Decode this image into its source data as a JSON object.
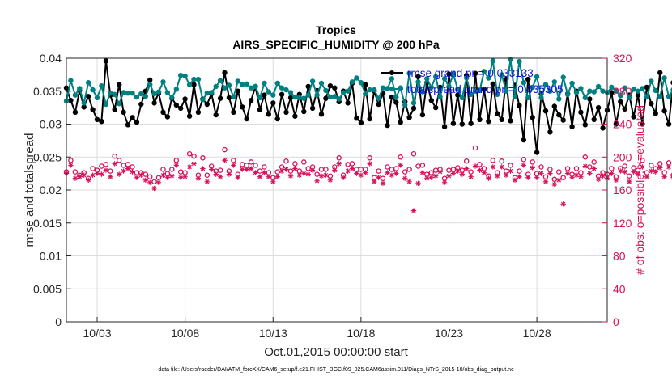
{
  "chart_data": {
    "type": "line",
    "title": "Tropics",
    "subtitle": "AIRS_SPECIFIC_HUMIDITY @ 200 hPa",
    "xlabel": "Oct.01,2015 00:00:00 start",
    "ylabel": "rmse and totalspread",
    "y2label": "# of obs: o=possible; ×=evaluated",
    "xlim": [
      1.25,
      32.0
    ],
    "ylim": [
      0,
      0.04
    ],
    "y2lim": [
      0,
      320
    ],
    "x_ticks": [
      {
        "value": 3,
        "label": "10/03"
      },
      {
        "value": 8,
        "label": "10/08"
      },
      {
        "value": 13,
        "label": "10/13"
      },
      {
        "value": 18,
        "label": "10/18"
      },
      {
        "value": 23,
        "label": "10/23"
      },
      {
        "value": 28,
        "label": "10/28"
      }
    ],
    "y_ticks": [
      "0",
      "0.005",
      "0.01",
      "0.015",
      "0.02",
      "0.025",
      "0.03",
      "0.035",
      "0.04"
    ],
    "y2_ticks": [
      "0",
      "40",
      "80",
      "120",
      "160",
      "200",
      "240",
      "280",
      "320"
    ],
    "grid": true,
    "legend_position": "top-right",
    "series": [
      {
        "name": "rmse",
        "legend_label": "rmse grand pr = 0.033133",
        "color": "#000000",
        "axis": "left",
        "marker": "filled-circle",
        "x_start": 1.25,
        "x_step": 0.25,
        "values": [
          0.0355,
          0.0336,
          0.0318,
          0.0351,
          0.0326,
          0.0342,
          0.0322,
          0.0307,
          0.0304,
          0.0396,
          0.0344,
          0.0322,
          0.036,
          0.0318,
          0.0299,
          0.031,
          0.0303,
          0.033,
          0.035,
          0.0367,
          0.0332,
          0.0347,
          0.0318,
          0.0311,
          0.0339,
          0.0329,
          0.0324,
          0.0338,
          0.0312,
          0.036,
          0.0318,
          0.0338,
          0.033,
          0.0346,
          0.0314,
          0.0339,
          0.0378,
          0.034,
          0.0318,
          0.035,
          0.0326,
          0.0308,
          0.0336,
          0.0357,
          0.0322,
          0.0344,
          0.0315,
          0.0332,
          0.0308,
          0.0345,
          0.0318,
          0.034,
          0.0312,
          0.0345,
          0.0319,
          0.0357,
          0.0324,
          0.0351,
          0.0315,
          0.0339,
          0.0358,
          0.0355,
          0.0334,
          0.035,
          0.0332,
          0.0362,
          0.0309,
          0.0302,
          0.036,
          0.0308,
          0.035,
          0.033,
          0.0347,
          0.0298,
          0.0341,
          0.0333,
          0.0303,
          0.0334,
          0.031,
          0.0324,
          0.0372,
          0.0314,
          0.0363,
          0.0336,
          0.0325,
          0.0356,
          0.0296,
          0.0376,
          0.0301,
          0.0344,
          0.03,
          0.0374,
          0.0301,
          0.0377,
          0.0307,
          0.0353,
          0.0304,
          0.0361,
          0.0316,
          0.0307,
          0.0368,
          0.0305,
          0.0359,
          0.0328,
          0.0276,
          0.0368,
          0.031,
          0.0257,
          0.0346,
          0.032,
          0.0288,
          0.0327,
          0.0314,
          0.0306,
          0.0346,
          0.0296,
          0.035,
          0.0318,
          0.0299,
          0.0338,
          0.0307,
          0.0325,
          0.0294,
          0.0321,
          0.0348,
          0.03,
          0.0334,
          0.0323,
          0.0344,
          0.0311,
          0.0344,
          0.03,
          0.0356,
          0.0331,
          0.0316,
          0.0378,
          0.032,
          0.03,
          0.0363,
          0.0316,
          0.0317,
          0.0344,
          0.0302,
          0.0349,
          0.035,
          0.0309,
          0.0326,
          0.031,
          0.0353,
          0.032,
          0.0301,
          0.0322,
          0.0311,
          0.0301,
          0.0297,
          0.0303,
          0.0309,
          0.0332
        ]
      },
      {
        "name": "totalspread",
        "legend_label": "totalspread grand pr = 0.035305",
        "color": "#008080",
        "axis": "left",
        "marker": "filled-circle",
        "x_start": 1.25,
        "x_step": 0.25,
        "values": [
          0.0335,
          0.0366,
          0.0344,
          0.0354,
          0.0332,
          0.0363,
          0.0352,
          0.034,
          0.0358,
          0.033,
          0.0347,
          0.0345,
          0.0331,
          0.0348,
          0.0347,
          0.0347,
          0.0341,
          0.0346,
          0.0342,
          0.036,
          0.0346,
          0.0349,
          0.0364,
          0.0348,
          0.034,
          0.0353,
          0.0374,
          0.0373,
          0.036,
          0.0368,
          0.0368,
          0.0337,
          0.0347,
          0.0348,
          0.0357,
          0.0366,
          0.0355,
          0.0359,
          0.0341,
          0.0365,
          0.036,
          0.0361,
          0.0355,
          0.0357,
          0.034,
          0.0362,
          0.0349,
          0.0344,
          0.0362,
          0.0355,
          0.0352,
          0.0348,
          0.0341,
          0.034,
          0.0339,
          0.0344,
          0.0365,
          0.0344,
          0.0362,
          0.0351,
          0.0341,
          0.0342,
          0.0338,
          0.0348,
          0.035,
          0.0364,
          0.037,
          0.0363,
          0.0346,
          0.0352,
          0.0352,
          0.0339,
          0.0355,
          0.0354,
          0.0369,
          0.0341,
          0.0355,
          0.0329,
          0.0377,
          0.0332,
          0.0364,
          0.0349,
          0.0369,
          0.0356,
          0.0372,
          0.0341,
          0.0369,
          0.0357,
          0.0376,
          0.0353,
          0.034,
          0.037,
          0.0345,
          0.035,
          0.0351,
          0.038,
          0.037,
          0.0396,
          0.0345,
          0.0375,
          0.035,
          0.0398,
          0.0342,
          0.0395,
          0.0363,
          0.034,
          0.0356,
          0.0372,
          0.034,
          0.036,
          0.035,
          0.0364,
          0.0338,
          0.0371,
          0.0345,
          0.0362,
          0.0348,
          0.0354,
          0.034,
          0.035,
          0.0349,
          0.0357,
          0.035,
          0.0348,
          0.0356,
          0.035,
          0.0343,
          0.0355,
          0.034,
          0.0353,
          0.035,
          0.0354,
          0.0341,
          0.0365,
          0.0351,
          0.0342,
          0.037,
          0.0342,
          0.0352,
          0.0369,
          0.0341,
          0.0353,
          0.0332,
          0.0341,
          0.0357,
          0.0343,
          0.0346,
          0.0339,
          0.0348,
          0.0347,
          0.0336,
          0.0341,
          0.033,
          0.0339,
          0.0337,
          0.0343,
          0.0349
        ]
      },
      {
        "name": "obs possible",
        "color": "#d6105a",
        "axis": "right",
        "marker": "open-circle",
        "x_start": 1.25,
        "x_step": 0.25,
        "values": [
          182,
          196,
          182,
          178,
          181,
          174,
          186,
          184,
          189,
          191,
          183,
          201,
          196,
          190,
          191,
          188,
          181,
          181,
          179,
          176,
          170,
          175,
          185,
          180,
          185,
          196,
          182,
          181,
          204,
          201,
          178,
          199,
          178,
          189,
          183,
          184,
          209,
          183,
          196,
          179,
          191,
          190,
          194,
          190,
          183,
          188,
          181,
          175,
          182,
          188,
          195,
          183,
          192,
          183,
          194,
          186,
          188,
          179,
          185,
          185,
          177,
          188,
          199,
          178,
          191,
          192,
          185,
          185,
          185,
          199,
          175,
          183,
          174,
          188,
          185,
          186,
          200,
          182,
          185,
          204,
          189,
          190,
          179,
          181,
          184,
          185,
          174,
          184,
          185,
          187,
          184,
          195,
          182,
          211,
          191,
          186,
          177,
          196,
          181,
          195,
          183,
          190,
          175,
          183,
          197,
          179,
          194,
          180,
          188,
          176,
          185,
          173,
          182,
          175,
          186,
          179,
          186,
          181,
          200,
          188,
          194,
          177,
          181,
          179,
          186,
          176,
          186,
          189,
          177,
          187,
          184,
          196,
          181,
          190,
          186,
          192,
          181,
          193,
          178,
          180,
          189,
          183,
          201,
          185,
          183,
          178,
          182,
          177,
          174,
          185,
          190,
          176,
          176,
          183,
          207,
          175,
          188,
          174,
          182
        ]
      },
      {
        "name": "obs evaluated",
        "color": "#d6105a",
        "axis": "right",
        "marker": "asterisk",
        "x_start": 1.25,
        "x_step": 0.25,
        "values": [
          180,
          190,
          174,
          176,
          178,
          172,
          178,
          180,
          179,
          184,
          176,
          192,
          179,
          183,
          186,
          182,
          175,
          178,
          172,
          169,
          162,
          169,
          178,
          175,
          177,
          190,
          175,
          176,
          188,
          192,
          174,
          186,
          170,
          185,
          179,
          176,
          196,
          179,
          190,
          175,
          185,
          185,
          186,
          181,
          176,
          181,
          176,
          170,
          176,
          183,
          185,
          177,
          186,
          178,
          180,
          179,
          184,
          171,
          177,
          178,
          172,
          184,
          192,
          175,
          183,
          186,
          180,
          178,
          181,
          192,
          170,
          175,
          168,
          181,
          178,
          180,
          190,
          174,
          170,
          135,
          168,
          181,
          174,
          175,
          177,
          182,
          169,
          177,
          180,
          183,
          179,
          186,
          176,
          189,
          184,
          181,
          174,
          188,
          177,
          188,
          178,
          183,
          172,
          176,
          190,
          175,
          187,
          175,
          180,
          170,
          180,
          167,
          172,
          143,
          180,
          175,
          178,
          176,
          189,
          180,
          186,
          173,
          177,
          174,
          180,
          172,
          183,
          182,
          170,
          182,
          179,
          188,
          176,
          183,
          182,
          187,
          176,
          188,
          175,
          177,
          182,
          177,
          189,
          181,
          178,
          173,
          175,
          175,
          170,
          178,
          187,
          175,
          172,
          178,
          195,
          170,
          184,
          172,
          180
        ]
      }
    ],
    "footnote": "data file: /Users/raeder/DAI/ATM_forcXX/CAM6_setup/f.e21.FHIST_BGC.f09_025.CAM6assim.011/Diags_NTrS_2015-10/obs_diag_output.nc"
  },
  "colors": {
    "rmse": "#000000",
    "totalspread": "#008080",
    "obs": "#d6105a",
    "legend_text": "#1010e0",
    "grid": "#dcdcdc"
  }
}
